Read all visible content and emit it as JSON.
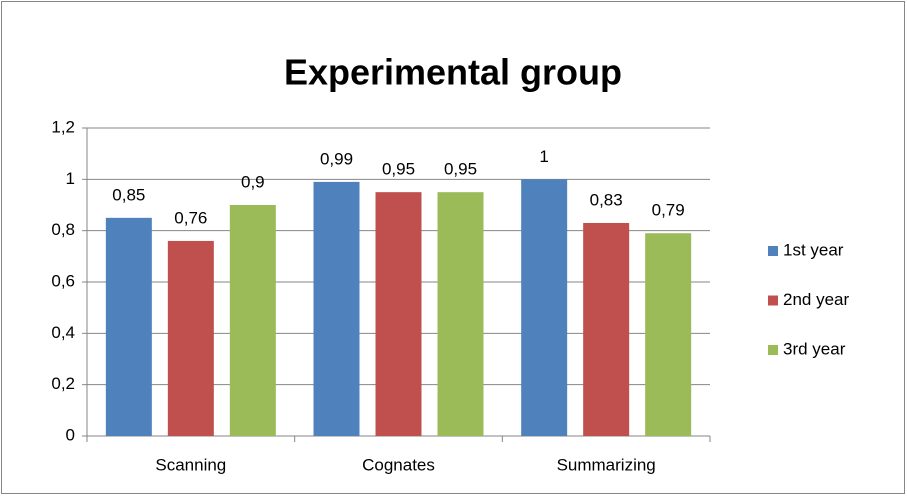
{
  "chart_data": {
    "type": "bar",
    "title": "Experimental group",
    "categories": [
      "Scanning",
      "Cognates",
      "Summarizing"
    ],
    "series": [
      {
        "name": "1st year",
        "color": "#4f81bd",
        "values": [
          0.85,
          0.99,
          1
        ],
        "value_labels": [
          "0,85",
          "0,99",
          "1"
        ]
      },
      {
        "name": "2nd year",
        "color": "#c0504d",
        "values": [
          0.76,
          0.95,
          0.83
        ],
        "value_labels": [
          "0,76",
          "0,95",
          "0,83"
        ]
      },
      {
        "name": "3rd year",
        "color": "#9bbb59",
        "values": [
          0.9,
          0.95,
          0.79
        ],
        "value_labels": [
          "0,9",
          "0,95",
          "0,79"
        ]
      }
    ],
    "ylim": [
      0,
      1.2
    ],
    "yticks": [
      0,
      {
        "value": 0.2,
        "label": "0,2"
      },
      {
        "value": 0.4,
        "label": "0,4"
      },
      {
        "value": 0.6,
        "label": "0,6"
      },
      {
        "value": 0.8,
        "label": "0,8"
      },
      1,
      {
        "value": 1.2,
        "label": "1,2"
      }
    ],
    "grid": true,
    "legend": "right"
  }
}
